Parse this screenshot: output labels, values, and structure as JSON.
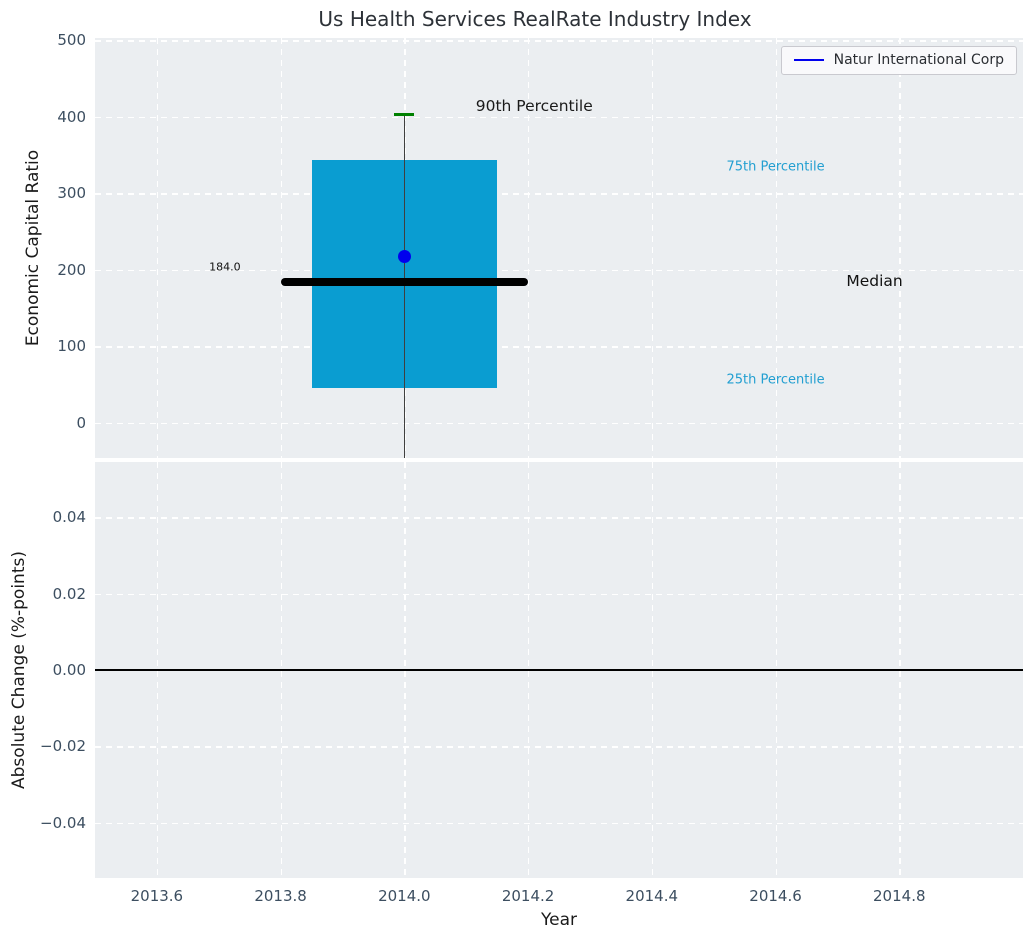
{
  "title": "Us Health Services RealRate Industry Index",
  "colors": {
    "figure_bg": "#ffffff",
    "axes_bg": "#ebeef1",
    "grid": "#ffffff",
    "tick_label": "#3c4e60",
    "axis_label": "#1a1a1a",
    "title": "#2d3238",
    "accent_blue": "#0000ee",
    "box_cyan": "#0a9dd1",
    "percentile_label_cyan": "#229fd1",
    "p90_green": "#008000"
  },
  "chart_data": [
    {
      "type": "boxplot",
      "ylabel": "Economic Capital Ratio",
      "xlim": [
        2013.5,
        2015.0
      ],
      "ylim": [
        -46,
        503
      ],
      "grid": true,
      "show_xtick_labels": false,
      "xticks": [
        {
          "label": "2013.6",
          "value": 2013.6
        },
        {
          "label": "2013.8",
          "value": 2013.8
        },
        {
          "label": "2014.0",
          "value": 2014.0
        },
        {
          "label": "2014.2",
          "value": 2014.2
        },
        {
          "label": "2014.4",
          "value": 2014.4
        },
        {
          "label": "2014.6",
          "value": 2014.6
        },
        {
          "label": "2014.8",
          "value": 2014.8
        }
      ],
      "yticks": [
        {
          "label": "0",
          "value": 0
        },
        {
          "label": "100",
          "value": 100
        },
        {
          "label": "200",
          "value": 200
        },
        {
          "label": "300",
          "value": 300
        },
        {
          "label": "400",
          "value": 400
        },
        {
          "label": "500",
          "value": 500
        }
      ],
      "legend": {
        "location": "upper right",
        "entries": [
          {
            "label": "Natur International Corp",
            "color": "#0000ee"
          }
        ]
      },
      "box": {
        "x_center": 2014.0,
        "box_left": 2013.85,
        "box_right": 2014.15,
        "median_left": 2013.8,
        "median_right": 2014.2,
        "cap_left": 2013.984,
        "cap_right": 2014.016,
        "p25": 46,
        "median": 184.0,
        "p75": 343,
        "p90": 403,
        "whisker_low": -46,
        "company_point": {
          "x": 2014.0,
          "y": 218,
          "color": "#0000ee"
        },
        "box_color": "#0a9dd1",
        "median_color": "#000000",
        "cap_color": "#008000",
        "whisker_color": "#3f3f3f"
      },
      "annotations": [
        {
          "text": "90th Percentile",
          "x": 2014.21,
          "y": 414,
          "color": "#1a1a1a",
          "kind": "big"
        },
        {
          "text": "184.0",
          "x": 2013.71,
          "y": 204,
          "color": "#111111",
          "kind": "small"
        },
        {
          "text": "75th Percentile",
          "x": 2014.6,
          "y": 334,
          "color": "#229fd1",
          "kind": "mid"
        },
        {
          "text": "Median",
          "x": 2014.76,
          "y": 185,
          "color": "#111111",
          "kind": "big"
        },
        {
          "text": "25th Percentile",
          "x": 2014.6,
          "y": 56,
          "color": "#229fd1",
          "kind": "mid"
        }
      ]
    },
    {
      "type": "line",
      "xlabel": "Year",
      "ylabel": "Absolute Change (%-points)",
      "xlim": [
        2013.5,
        2015.0
      ],
      "ylim": [
        -0.0545,
        0.0545
      ],
      "grid": true,
      "show_xtick_labels": true,
      "xticks": [
        {
          "label": "2013.6",
          "value": 2013.6
        },
        {
          "label": "2013.8",
          "value": 2013.8
        },
        {
          "label": "2014.0",
          "value": 2014.0
        },
        {
          "label": "2014.2",
          "value": 2014.2
        },
        {
          "label": "2014.4",
          "value": 2014.4
        },
        {
          "label": "2014.6",
          "value": 2014.6
        },
        {
          "label": "2014.8",
          "value": 2014.8
        }
      ],
      "yticks": [
        {
          "label": "0.04",
          "value": 0.04
        },
        {
          "label": "0.02",
          "value": 0.02
        },
        {
          "label": "0.00",
          "value": 0.0
        },
        {
          "label": "−0.02",
          "value": -0.02
        },
        {
          "label": "−0.04",
          "value": -0.04
        }
      ],
      "zero_line": {
        "y": 0.0,
        "color": "#000000"
      }
    }
  ]
}
